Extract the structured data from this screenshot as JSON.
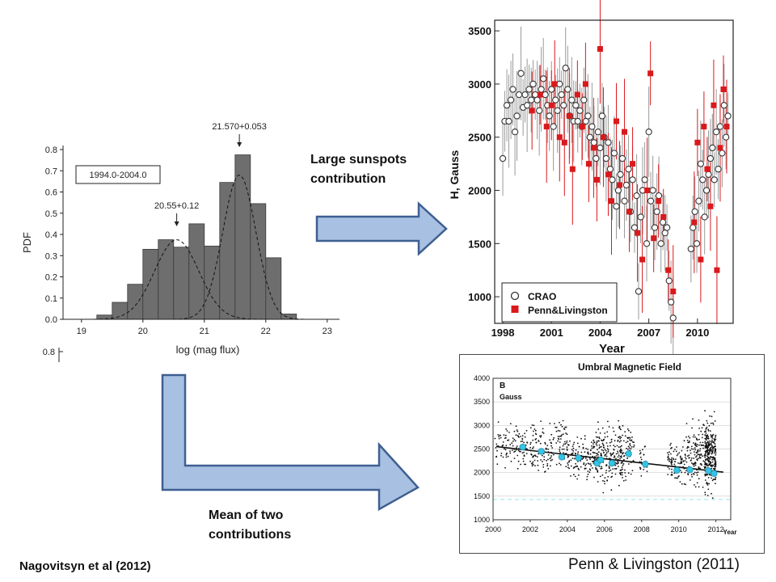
{
  "colors": {
    "bar_fill": "#6e6e6e",
    "arrow_fill": "#a8c0e2",
    "arrow_stroke": "#3e5f91",
    "red": "#d9191c",
    "cyan": "#35c4e4"
  },
  "captions": {
    "large_sunspots": [
      "Large sunspots",
      "contribution"
    ],
    "mean_two": [
      "Mean of two",
      "contributions"
    ],
    "nagovitsyn": "Nagovitsyn et al (2012)",
    "penn": "Penn & Livingston (2011)"
  },
  "chart_data": [
    {
      "type": "bar",
      "title": "",
      "legend_box": "1994.0-2004.0",
      "xlabel": "log (mag flux)",
      "ylabel": "PDF",
      "xlim": [
        18.7,
        23.2
      ],
      "ylim": [
        0,
        0.8
      ],
      "xticks": [
        19,
        20,
        21,
        22,
        23
      ],
      "yticks": [
        0.0,
        0.1,
        0.2,
        0.3,
        0.4,
        0.5,
        0.6,
        0.7,
        0.8
      ],
      "bin_width": 0.25,
      "bins": [
        19.25,
        19.5,
        19.75,
        20.0,
        20.25,
        20.5,
        20.75,
        21.0,
        21.25,
        21.5,
        21.75,
        22.0,
        22.25
      ],
      "values": [
        0.02,
        0.08,
        0.165,
        0.33,
        0.375,
        0.34,
        0.45,
        0.345,
        0.645,
        0.775,
        0.545,
        0.29,
        0.025
      ],
      "fits": [
        {
          "mean": 20.55,
          "sigma": 0.36,
          "peak": 0.375
        },
        {
          "mean": 21.57,
          "sigma": 0.27,
          "peak": 0.68
        }
      ],
      "annotations": [
        {
          "text": "20.55+0.12",
          "x": 20.55
        },
        {
          "text": "21.570+0.053",
          "x": 21.57
        }
      ],
      "stub_tick": "0.8"
    },
    {
      "type": "scatter",
      "title": "",
      "xlabel": "Year",
      "ylabel": "H, Gauss",
      "xlim": [
        1997.5,
        2012.2
      ],
      "ylim": [
        750,
        3600
      ],
      "xticks": [
        1998,
        2001,
        2004,
        2007,
        2010
      ],
      "yticks": [
        1000,
        1500,
        2000,
        2500,
        3000,
        3500
      ],
      "legend": [
        "CRAO",
        "Penn&Livingston"
      ],
      "series": [
        {
          "name": "CRAO",
          "x": [
            1998.0,
            1998.12,
            1998.25,
            1998.37,
            1998.5,
            1998.62,
            1998.75,
            1998.87,
            1999.0,
            1999.12,
            1999.25,
            1999.37,
            1999.5,
            1999.62,
            1999.75,
            1999.87,
            2000.0,
            2000.12,
            2000.25,
            2000.37,
            2000.5,
            2000.62,
            2000.75,
            2000.87,
            2001.0,
            2001.12,
            2001.25,
            2001.37,
            2001.5,
            2001.62,
            2001.75,
            2001.87,
            2002.0,
            2002.12,
            2002.25,
            2002.37,
            2002.5,
            2002.62,
            2002.75,
            2002.87,
            2003.0,
            2003.12,
            2003.25,
            2003.37,
            2003.5,
            2003.62,
            2003.75,
            2003.87,
            2004.0,
            2004.12,
            2004.25,
            2004.37,
            2004.5,
            2004.62,
            2004.75,
            2004.87,
            2005.0,
            2005.12,
            2005.25,
            2005.37,
            2005.5,
            2005.62,
            2005.75,
            2005.87,
            2006.0,
            2006.12,
            2006.25,
            2006.37,
            2006.5,
            2006.62,
            2006.75,
            2006.87,
            2007.0,
            2007.12,
            2007.25,
            2007.37,
            2007.5,
            2007.62,
            2007.75,
            2007.87,
            2008.0,
            2008.12,
            2008.25,
            2008.37,
            2008.5,
            2009.6,
            2009.72,
            2009.84,
            2009.96,
            2010.08,
            2010.2,
            2010.32,
            2010.44,
            2010.56,
            2010.68,
            2010.8,
            2010.92,
            2011.04,
            2011.16,
            2011.28,
            2011.4,
            2011.52,
            2011.64,
            2011.76,
            2011.88
          ],
          "y": [
            2300,
            2650,
            2800,
            2650,
            2850,
            2950,
            2550,
            2700,
            2900,
            3100,
            2780,
            2900,
            2800,
            2950,
            2850,
            3000,
            2900,
            2850,
            2750,
            2950,
            3050,
            2900,
            2800,
            2700,
            2950,
            2600,
            2850,
            2750,
            3000,
            2900,
            2800,
            3150,
            2950,
            2700,
            2850,
            2650,
            2800,
            2650,
            2750,
            2600,
            2850,
            2650,
            2700,
            2500,
            2600,
            2450,
            2300,
            2550,
            2400,
            2700,
            2500,
            2300,
            2450,
            2200,
            2100,
            2350,
            1850,
            2000,
            2150,
            2300,
            1900,
            2050,
            2200,
            1800,
            2100,
            1650,
            1950,
            1050,
            1750,
            2000,
            2100,
            1500,
            2550,
            1900,
            2000,
            1650,
            1800,
            1950,
            1500,
            1700,
            1600,
            1650,
            1150,
            950,
            800,
            1450,
            1650,
            1800,
            1500,
            1900,
            2250,
            2100,
            1750,
            2000,
            2150,
            2300,
            2400,
            2100,
            2550,
            2200,
            2600,
            2350,
            2800,
            2500,
            2700
          ]
        },
        {
          "name": "Penn&Livingston",
          "x": [
            1999.8,
            2000.3,
            2000.7,
            2001.0,
            2001.2,
            2001.5,
            2001.8,
            2002.1,
            2002.3,
            2002.6,
            2002.9,
            2003.1,
            2003.3,
            2003.6,
            2003.8,
            2004.0,
            2004.2,
            2004.5,
            2004.7,
            2005.0,
            2005.2,
            2005.5,
            2005.8,
            2006.0,
            2006.3,
            2006.6,
            2006.9,
            2007.1,
            2007.3,
            2007.6,
            2007.9,
            2008.2,
            2008.5,
            2009.8,
            2010.0,
            2010.2,
            2010.4,
            2010.6,
            2010.8,
            2011.0,
            2011.2,
            2011.4,
            2011.6,
            2011.8
          ],
          "y": [
            2750,
            2900,
            2600,
            2800,
            3000,
            2500,
            2450,
            2700,
            2200,
            2900,
            2600,
            3000,
            2250,
            2400,
            2100,
            3330,
            2500,
            2150,
            1900,
            2650,
            2050,
            2550,
            1800,
            2250,
            1600,
            1350,
            2000,
            3100,
            1550,
            1900,
            1750,
            1250,
            1050,
            1700,
            2450,
            1350,
            2600,
            2200,
            1850,
            2800,
            1250,
            2400,
            2950,
            2600
          ]
        }
      ]
    },
    {
      "type": "scatter",
      "title": "Umbral Magnetic Field",
      "panel_label": "B",
      "unit_label": "Gauss",
      "xlabel": "Year",
      "ylabel": "",
      "xlim": [
        2000,
        2012.8
      ],
      "ylim": [
        1000,
        4000
      ],
      "xticks": [
        2000,
        2002,
        2004,
        2006,
        2008,
        2010,
        2012
      ],
      "yticks": [
        1000,
        1500,
        2000,
        2500,
        3000,
        3500,
        4000
      ],
      "trend": {
        "x": [
          2000.2,
          2012.4
        ],
        "y": [
          2550,
          2010
        ]
      },
      "dashed_level": 1430,
      "clusters": [
        {
          "x": 2001.0,
          "spread": 0.9,
          "ymin": 1950,
          "ymax": 3250,
          "n": 110
        },
        {
          "x": 2003.0,
          "spread": 1.0,
          "ymin": 1800,
          "ymax": 3300,
          "n": 150
        },
        {
          "x": 2004.8,
          "spread": 0.8,
          "ymin": 1700,
          "ymax": 3000,
          "n": 130
        },
        {
          "x": 2006.2,
          "spread": 0.8,
          "ymin": 1500,
          "ymax": 3300,
          "n": 200
        },
        {
          "x": 2007.2,
          "spread": 0.4,
          "ymin": 1600,
          "ymax": 3400,
          "n": 70
        },
        {
          "x": 2008.1,
          "spread": 0.2,
          "ymin": 1800,
          "ymax": 2700,
          "n": 25
        },
        {
          "x": 2009.9,
          "spread": 0.5,
          "ymin": 1600,
          "ymax": 2850,
          "n": 90
        },
        {
          "x": 2011.0,
          "spread": 0.7,
          "ymin": 1400,
          "ymax": 3300,
          "n": 170
        },
        {
          "x": 2011.7,
          "spread": 0.3,
          "ymin": 1350,
          "ymax": 3400,
          "n": 260
        }
      ],
      "series": [
        {
          "name": "",
          "x": [
            2001.6,
            2002.6,
            2003.7,
            2004.6,
            2005.6,
            2005.8,
            2006.4,
            2007.3,
            2008.2,
            2009.9,
            2010.6,
            2011.6,
            2011.9
          ],
          "y": [
            2540,
            2450,
            2330,
            2310,
            2200,
            2270,
            2200,
            2400,
            2180,
            2050,
            2060,
            2040,
            1980
          ]
        }
      ]
    }
  ]
}
